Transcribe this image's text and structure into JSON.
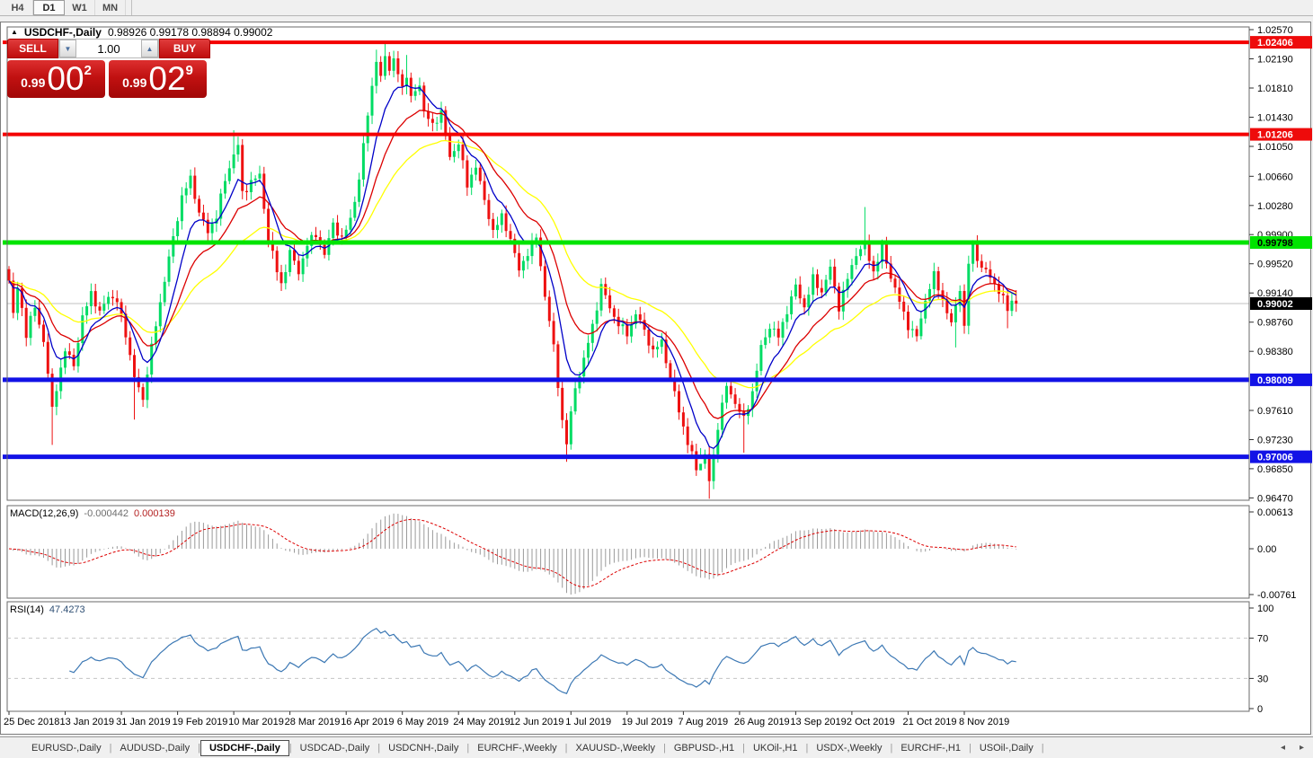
{
  "toolbar": {
    "timeframes": [
      {
        "label": "H4",
        "active": false
      },
      {
        "label": "D1",
        "active": true
      },
      {
        "label": "W1",
        "active": false
      },
      {
        "label": "MN",
        "active": false
      }
    ]
  },
  "chart": {
    "marker_glyph": "▲",
    "title_symbol": "USDCHF-,Daily",
    "title_ohlc": "0.98926 0.99178 0.98894 0.99002"
  },
  "trade": {
    "sell_label": "SELL",
    "buy_label": "BUY",
    "volume": "1.00",
    "decrease_glyph": "▼",
    "increase_glyph": "▲",
    "sell_price_prefix": "0.99",
    "sell_price_big": "00",
    "sell_price_sup": "2",
    "buy_price_prefix": "0.99",
    "buy_price_big": "02",
    "buy_price_sup": "9"
  },
  "price_axis": {
    "ticks": [
      "1.02570",
      "1.02190",
      "1.01810",
      "1.01430",
      "1.01050",
      "1.00660",
      "1.00280",
      "0.99900",
      "0.99520",
      "0.99140",
      "0.98760",
      "0.98380",
      "0.97610",
      "0.97230",
      "0.96850",
      "0.96470"
    ],
    "tags": [
      {
        "label": "1.02406",
        "price": 1.02406,
        "bg": "#ee0b0b",
        "fg": "#ffffff"
      },
      {
        "label": "1.01206",
        "price": 1.01206,
        "bg": "#ee0b0b",
        "fg": "#ffffff"
      },
      {
        "label": "0.99798",
        "price": 0.99798,
        "bg": "#00e400",
        "fg": "#000000"
      },
      {
        "label": "0.99002",
        "price": 0.99002,
        "bg": "#000000",
        "fg": "#ffffff"
      },
      {
        "label": "0.98009",
        "price": 0.98009,
        "bg": "#1212e6",
        "fg": "#ffffff"
      },
      {
        "label": "0.97006",
        "price": 0.97006,
        "bg": "#1212e6",
        "fg": "#ffffff"
      }
    ]
  },
  "macd": {
    "name": "MACD(12,26,9)",
    "value_main": "-0.000442",
    "value_signal": "0.000139",
    "axis_ticks": [
      "0.00613",
      "0.00",
      "-0.00761"
    ]
  },
  "rsi": {
    "name": "RSI(14)",
    "value": "47.4273",
    "axis_ticks": [
      "100",
      "70",
      "30",
      "0"
    ]
  },
  "date_axis": [
    "25 Dec 2018",
    "13 Jan 2019",
    "31 Jan 2019",
    "19 Feb 2019",
    "10 Mar 2019",
    "28 Mar 2019",
    "16 Apr 2019",
    "6 May 2019",
    "24 May 2019",
    "12 Jun 2019",
    "1 Jul 2019",
    "19 Jul 2019",
    "7 Aug 2019",
    "26 Aug 2019",
    "13 Sep 2019",
    "2 Oct 2019",
    "21 Oct 2019",
    "8 Nov 2019"
  ],
  "tabs": [
    {
      "label": "EURUSD-,Daily",
      "active": false
    },
    {
      "label": "AUDUSD-,Daily",
      "active": false
    },
    {
      "label": "USDCHF-,Daily",
      "active": true
    },
    {
      "label": "USDCAD-,Daily",
      "active": false
    },
    {
      "label": "USDCNH-,Daily",
      "active": false
    },
    {
      "label": "EURCHF-,Weekly",
      "active": false
    },
    {
      "label": "XAUUSD-,Weekly",
      "active": false
    },
    {
      "label": "GBPUSD-,H1",
      "active": false
    },
    {
      "label": "UKOil-,H1",
      "active": false
    },
    {
      "label": "USDX-,Weekly",
      "active": false
    },
    {
      "label": "EURCHF-,H1",
      "active": false
    },
    {
      "label": "USOil-,Daily",
      "active": false
    }
  ],
  "tab_scroll": {
    "left_glyph": "◂",
    "right_glyph": "▸"
  },
  "chart_data": {
    "type": "candlestick",
    "symbol": "USDCHF-",
    "timeframe": "Daily",
    "title": "USDCHF-,Daily",
    "ohlc_current": {
      "open": 0.98926,
      "high": 0.99178,
      "low": 0.98894,
      "close": 0.99002
    },
    "y_axis": {
      "price_min": 0.9645,
      "price_max": 1.0258
    },
    "candle_colors": {
      "bull": "#00dc64",
      "bear": "#ee1111"
    },
    "close_anchors": [
      [
        0,
        0.993
      ],
      [
        1,
        0.9885
      ],
      [
        2,
        0.992
      ],
      [
        3,
        0.9895
      ],
      [
        4,
        0.986
      ],
      [
        6,
        0.9896
      ],
      [
        8,
        0.9852
      ],
      [
        10,
        0.9762
      ],
      [
        11,
        0.9792
      ],
      [
        13,
        0.9838
      ],
      [
        15,
        0.9822
      ],
      [
        17,
        0.988
      ],
      [
        19,
        0.9916
      ],
      [
        21,
        0.9886
      ],
      [
        23,
        0.9912
      ],
      [
        25,
        0.9902
      ],
      [
        27,
        0.9862
      ],
      [
        29,
        0.9803
      ],
      [
        31,
        0.9776
      ],
      [
        32,
        0.9812
      ],
      [
        34,
        0.9872
      ],
      [
        36,
        0.9932
      ],
      [
        38,
        0.9985
      ],
      [
        40,
        1.004
      ],
      [
        42,
        1.0062
      ],
      [
        44,
        1.002
      ],
      [
        46,
        0.9992
      ],
      [
        48,
        1.0016
      ],
      [
        50,
        1.006
      ],
      [
        52,
        1.0096
      ],
      [
        53,
        1.0106
      ],
      [
        54,
        1.0042
      ],
      [
        56,
        1.006
      ],
      [
        58,
        1.0066
      ],
      [
        60,
        0.9986
      ],
      [
        62,
        0.9942
      ],
      [
        63,
        0.9926
      ],
      [
        65,
        0.9966
      ],
      [
        67,
        0.9942
      ],
      [
        69,
        0.9976
      ],
      [
        71,
        0.9992
      ],
      [
        73,
        0.9962
      ],
      [
        75,
        1.0006
      ],
      [
        77,
        0.9982
      ],
      [
        79,
        1.0012
      ],
      [
        81,
        1.006
      ],
      [
        83,
        1.015
      ],
      [
        85,
        1.0216
      ],
      [
        86,
        1.0192
      ],
      [
        87,
        1.0226
      ],
      [
        88,
        1.0206
      ],
      [
        89,
        1.0216
      ],
      [
        91,
        1.0182
      ],
      [
        92,
        1.02
      ],
      [
        93,
        1.0166
      ],
      [
        95,
        1.0186
      ],
      [
        96,
        1.0152
      ],
      [
        98,
        1.013
      ],
      [
        100,
        1.0152
      ],
      [
        102,
        1.0088
      ],
      [
        104,
        1.0112
      ],
      [
        106,
        1.0052
      ],
      [
        108,
        1.0082
      ],
      [
        110,
        1.0032
      ],
      [
        112,
        0.9996
      ],
      [
        114,
        1.0012
      ],
      [
        116,
        0.9986
      ],
      [
        118,
        0.9942
      ],
      [
        120,
        0.9968
      ],
      [
        122,
        0.9986
      ],
      [
        124,
        0.9912
      ],
      [
        126,
        0.9842
      ],
      [
        128,
        0.9748
      ],
      [
        129,
        0.9718
      ],
      [
        131,
        0.9792
      ],
      [
        133,
        0.9826
      ],
      [
        135,
        0.9872
      ],
      [
        137,
        0.9922
      ],
      [
        139,
        0.9896
      ],
      [
        141,
        0.9872
      ],
      [
        143,
        0.9862
      ],
      [
        145,
        0.9886
      ],
      [
        147,
        0.9866
      ],
      [
        149,
        0.9836
      ],
      [
        151,
        0.9852
      ],
      [
        153,
        0.9802
      ],
      [
        155,
        0.9762
      ],
      [
        157,
        0.9718
      ],
      [
        159,
        0.9686
      ],
      [
        161,
        0.9702
      ],
      [
        162,
        0.9668
      ],
      [
        163,
        0.9702
      ],
      [
        164,
        0.9742
      ],
      [
        166,
        0.9792
      ],
      [
        168,
        0.9772
      ],
      [
        170,
        0.9748
      ],
      [
        172,
        0.9786
      ],
      [
        174,
        0.9842
      ],
      [
        176,
        0.9872
      ],
      [
        178,
        0.9856
      ],
      [
        180,
        0.9892
      ],
      [
        182,
        0.9922
      ],
      [
        184,
        0.9896
      ],
      [
        186,
        0.9932
      ],
      [
        188,
        0.9916
      ],
      [
        190,
        0.9946
      ],
      [
        192,
        0.9896
      ],
      [
        194,
        0.9932
      ],
      [
        196,
        0.9966
      ],
      [
        198,
        0.9976
      ],
      [
        200,
        0.9942
      ],
      [
        202,
        0.9972
      ],
      [
        204,
        0.9936
      ],
      [
        206,
        0.9902
      ],
      [
        208,
        0.9872
      ],
      [
        210,
        0.9856
      ],
      [
        212,
        0.9906
      ],
      [
        214,
        0.9936
      ],
      [
        216,
        0.9906
      ],
      [
        218,
        0.9872
      ],
      [
        220,
        0.9922
      ],
      [
        221,
        0.9868
      ],
      [
        222,
        0.9952
      ],
      [
        223,
        0.9976
      ],
      [
        225,
        0.9946
      ],
      [
        227,
        0.9936
      ],
      [
        229,
        0.9916
      ],
      [
        231,
        0.9893
      ],
      [
        232,
        0.9906
      ],
      [
        233,
        0.99002
      ]
    ],
    "wick_overrides": [
      {
        "i": 10,
        "low": 0.9716
      },
      {
        "i": 29,
        "low": 0.9749
      },
      {
        "i": 52,
        "high": 1.0126
      },
      {
        "i": 85,
        "high": 1.0231
      },
      {
        "i": 87,
        "high": 1.0239
      },
      {
        "i": 92,
        "high": 1.0224
      },
      {
        "i": 129,
        "low": 0.9694
      },
      {
        "i": 160,
        "low": 0.9712
      },
      {
        "i": 162,
        "low": 0.9646
      },
      {
        "i": 170,
        "low": 0.9706
      },
      {
        "i": 198,
        "high": 1.0026
      },
      {
        "i": 219,
        "low": 0.9843
      },
      {
        "i": 231,
        "low": 0.9868
      }
    ],
    "moving_averages": [
      {
        "name": "slow",
        "period": 34,
        "color": "#ffff00"
      },
      {
        "name": "medium",
        "period": 17,
        "color": "#dc0000"
      },
      {
        "name": "fast",
        "period": 8,
        "color": "#0000c8"
      }
    ],
    "levels": [
      {
        "price": 1.02406,
        "color": "#f40000",
        "thickness": 4,
        "kind": "resistance"
      },
      {
        "price": 1.01206,
        "color": "#f40000",
        "thickness": 4,
        "kind": "resistance"
      },
      {
        "price": 0.99798,
        "color": "#00e400",
        "thickness": 5,
        "kind": "pivot"
      },
      {
        "price": 0.98009,
        "color": "#1212e6",
        "thickness": 5,
        "kind": "support"
      },
      {
        "price": 0.97006,
        "color": "#1212e6",
        "thickness": 5,
        "kind": "support"
      }
    ],
    "current_price": {
      "price": 0.99002,
      "line_color": "#c0c0c0"
    },
    "macd": {
      "fast": 12,
      "slow": 26,
      "signal": 9,
      "main_value": -0.000442,
      "signal_value": 0.000139,
      "hist_color": "#9a9a9a",
      "signal_color": "#dd0000",
      "axis": [
        {
          "label": "0.00613",
          "value": 0.00613
        },
        {
          "label": "0.00",
          "value": 0
        },
        {
          "label": "-0.00761",
          "value": -0.00761
        }
      ]
    },
    "rsi": {
      "period": 14,
      "value": 47.4273,
      "color": "#3c78b4",
      "levels": [
        70,
        30
      ],
      "axis": [
        {
          "label": "100",
          "value": 100
        },
        {
          "label": "70",
          "value": 70
        },
        {
          "label": "30",
          "value": 30
        },
        {
          "label": "0",
          "value": 0
        }
      ]
    }
  }
}
